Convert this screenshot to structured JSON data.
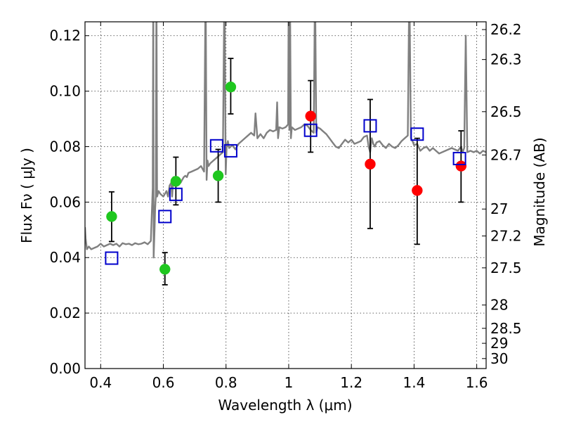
{
  "chart_data": {
    "type": "scatter",
    "title": "",
    "xlabel": "Wavelength  λ (μm)",
    "ylabel": "Flux  Fν  ( μJy )",
    "ylabel_right": "Magnitude (AB)",
    "xlim": [
      0.35,
      1.63
    ],
    "ylim": [
      0.0,
      0.125
    ],
    "grid": true,
    "x_ticks": [
      0.4,
      0.6,
      0.8,
      1.0,
      1.2,
      1.4,
      1.6
    ],
    "x_tick_labels": [
      "0.4",
      "0.6",
      "0.8",
      "1",
      "1.2",
      "1.4",
      "1.6"
    ],
    "y_ticks": [
      0.0,
      0.02,
      0.04,
      0.06,
      0.08,
      0.1,
      0.12
    ],
    "y_tick_labels": [
      "0.00",
      "0.02",
      "0.04",
      "0.06",
      "0.08",
      "0.10",
      "0.12"
    ],
    "right_ticks": [
      {
        "flux": 0.1222,
        "label": "26.2"
      },
      {
        "flux": 0.1114,
        "label": "26.3"
      },
      {
        "flux": 0.0926,
        "label": "26.5"
      },
      {
        "flux": 0.077,
        "label": "26.7"
      },
      {
        "flux": 0.0575,
        "label": "27"
      },
      {
        "flux": 0.0478,
        "label": "27.2"
      },
      {
        "flux": 0.0363,
        "label": "27.5"
      },
      {
        "flux": 0.0229,
        "label": "28"
      },
      {
        "flux": 0.0145,
        "label": "28.5"
      },
      {
        "flux": 0.0091,
        "label": "29"
      },
      {
        "flux": 0.0036,
        "label": "30"
      }
    ],
    "spectrum": {
      "color": "#808080",
      "x": [
        0.35,
        0.352,
        0.356,
        0.362,
        0.37,
        0.38,
        0.39,
        0.4,
        0.41,
        0.42,
        0.43,
        0.44,
        0.45,
        0.46,
        0.47,
        0.48,
        0.49,
        0.5,
        0.51,
        0.52,
        0.53,
        0.54,
        0.55,
        0.56,
        0.566,
        0.568,
        0.569,
        0.572,
        0.574,
        0.576,
        0.578,
        0.58,
        0.585,
        0.59,
        0.6,
        0.61,
        0.615,
        0.62,
        0.625,
        0.628,
        0.632,
        0.636,
        0.64,
        0.645,
        0.65,
        0.655,
        0.66,
        0.665,
        0.67,
        0.675,
        0.68,
        0.69,
        0.7,
        0.71,
        0.72,
        0.73,
        0.735,
        0.738,
        0.741,
        0.744,
        0.75,
        0.76,
        0.77,
        0.78,
        0.79,
        0.795,
        0.799,
        0.802,
        0.806,
        0.81,
        0.82,
        0.83,
        0.84,
        0.85,
        0.86,
        0.87,
        0.88,
        0.89,
        0.894,
        0.9,
        0.91,
        0.92,
        0.93,
        0.94,
        0.95,
        0.96,
        0.963,
        0.966,
        0.97,
        0.98,
        0.99,
        0.998,
        1.0,
        1.002,
        1.004,
        1.007,
        1.01,
        1.02,
        1.03,
        1.04,
        1.05,
        1.06,
        1.07,
        1.08,
        1.084,
        1.088,
        1.092,
        1.1,
        1.11,
        1.12,
        1.13,
        1.14,
        1.15,
        1.16,
        1.17,
        1.18,
        1.19,
        1.2,
        1.21,
        1.22,
        1.23,
        1.24,
        1.25,
        1.255,
        1.26,
        1.265,
        1.27,
        1.275,
        1.28,
        1.29,
        1.3,
        1.31,
        1.32,
        1.33,
        1.34,
        1.35,
        1.36,
        1.37,
        1.38,
        1.385,
        1.39,
        1.395,
        1.4,
        1.41,
        1.42,
        1.43,
        1.44,
        1.45,
        1.46,
        1.47,
        1.48,
        1.5,
        1.52,
        1.54,
        1.55,
        1.555,
        1.56,
        1.565,
        1.57,
        1.58,
        1.59,
        1.6,
        1.61,
        1.62,
        1.63
      ],
      "y": [
        0.051,
        0.047,
        0.043,
        0.044,
        0.043,
        0.0435,
        0.044,
        0.045,
        0.044,
        0.0445,
        0.045,
        0.0445,
        0.045,
        0.044,
        0.0452,
        0.0448,
        0.045,
        0.0445,
        0.0452,
        0.0448,
        0.045,
        0.0455,
        0.0448,
        0.046,
        0.065,
        0.14,
        0.04,
        0.05,
        0.058,
        0.062,
        0.14,
        0.062,
        0.064,
        0.063,
        0.062,
        0.064,
        0.062,
        0.066,
        0.067,
        0.062,
        0.069,
        0.068,
        0.067,
        0.066,
        0.068,
        0.067,
        0.068,
        0.069,
        0.0695,
        0.069,
        0.0705,
        0.071,
        0.0715,
        0.072,
        0.073,
        0.071,
        0.14,
        0.068,
        0.075,
        0.073,
        0.074,
        0.075,
        0.076,
        0.077,
        0.078,
        0.14,
        0.07,
        0.08,
        0.082,
        0.0795,
        0.0805,
        0.079,
        0.081,
        0.082,
        0.083,
        0.084,
        0.085,
        0.084,
        0.092,
        0.083,
        0.0845,
        0.083,
        0.085,
        0.086,
        0.0855,
        0.086,
        0.096,
        0.083,
        0.087,
        0.0865,
        0.087,
        0.088,
        0.14,
        0.086,
        0.14,
        0.083,
        0.087,
        0.086,
        0.0865,
        0.087,
        0.088,
        0.0875,
        0.086,
        0.085,
        0.14,
        0.085,
        0.087,
        0.0865,
        0.0855,
        0.0845,
        0.083,
        0.0815,
        0.08,
        0.0795,
        0.081,
        0.0825,
        0.0815,
        0.0825,
        0.081,
        0.0815,
        0.082,
        0.0835,
        0.084,
        0.08,
        0.078,
        0.083,
        0.081,
        0.08,
        0.0815,
        0.082,
        0.0805,
        0.0795,
        0.081,
        0.08,
        0.0795,
        0.0805,
        0.082,
        0.083,
        0.084,
        0.14,
        0.083,
        0.082,
        0.0805,
        0.081,
        0.0785,
        0.0795,
        0.08,
        0.0785,
        0.0795,
        0.0785,
        0.0775,
        0.0785,
        0.0795,
        0.0785,
        0.08,
        0.078,
        0.0795,
        0.12,
        0.078,
        0.0785,
        0.078,
        0.0785,
        0.0775,
        0.0785,
        0.078
      ]
    },
    "series": [
      {
        "marker": "circle-filled",
        "color": "#1fc71f",
        "x": [
          0.435,
          0.605,
          0.64,
          0.775,
          0.815
        ],
        "y": [
          0.0548,
          0.0358,
          0.0675,
          0.0695,
          0.1015
        ],
        "yerr_low": [
          0.0458,
          0.0302,
          0.059,
          0.06,
          0.0918
        ],
        "yerr_high": [
          0.0637,
          0.0418,
          0.0762,
          0.079,
          0.1118
        ]
      },
      {
        "marker": "circle-filled",
        "color": "#ff0000",
        "x": [
          1.07,
          1.26,
          1.41,
          1.55
        ],
        "y": [
          0.091,
          0.0737,
          0.0642,
          0.073
        ],
        "yerr_low": [
          0.078,
          0.0505,
          0.0448,
          0.06
        ],
        "yerr_high": [
          0.1038,
          0.097,
          0.083,
          0.0857
        ]
      },
      {
        "marker": "square-open",
        "color": "#0000cc",
        "x": [
          0.435,
          0.605,
          0.64,
          0.77,
          0.815,
          1.07,
          1.26,
          1.41,
          1.545
        ],
        "y": [
          0.0398,
          0.0548,
          0.0628,
          0.0803,
          0.0785,
          0.0859,
          0.0875,
          0.0845,
          0.0757
        ]
      }
    ]
  }
}
